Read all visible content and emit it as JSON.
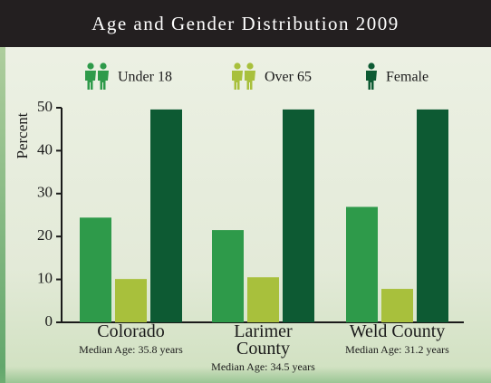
{
  "chart_data": {
    "type": "bar",
    "title": "Age and Gender Distribution 2009",
    "y_label": "Percent",
    "categories": [
      "Colorado",
      "Larimer County",
      "Weld County"
    ],
    "category_notes": [
      "Median Age: 35.8 years",
      "Median Age: 34.5 years",
      "Median Age: 31.2 years"
    ],
    "series": [
      {
        "name": "Under 18",
        "color": "#2e9a4a",
        "values": [
          24.4,
          21.5,
          26.9
        ]
      },
      {
        "name": "Over 65",
        "color": "#a8c03c",
        "values": [
          10.1,
          10.5,
          7.8
        ]
      },
      {
        "name": "Female",
        "color": "#0d5a33",
        "values": [
          49.6,
          49.6,
          49.6
        ]
      }
    ],
    "ylim": [
      0,
      50
    ],
    "yticks": [
      0,
      10,
      20,
      30,
      40,
      50
    ],
    "grid": false
  }
}
